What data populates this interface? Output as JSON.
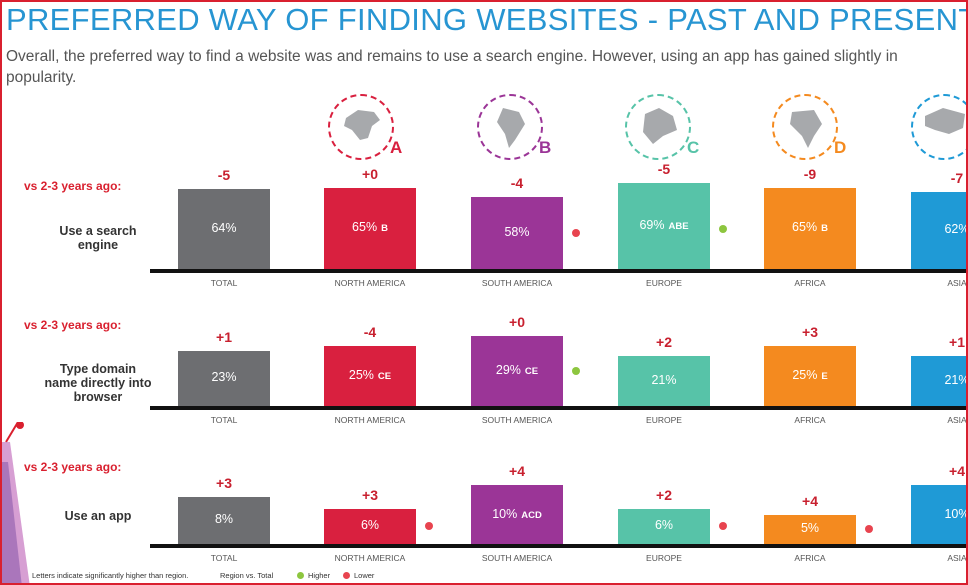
{
  "title": "PREFERRED WAY OF FINDING WEBSITES - PAST AND PRESENT",
  "subtitle": "Overall, the preferred way to find a website was and remains to use a search engine. However, using an app has gained slightly in popularity.",
  "colors": {
    "total": "#6d6e71",
    "north_america": "#d9203f",
    "south_america": "#9b3597",
    "europe": "#57c3a8",
    "africa": "#f48a1f",
    "asia": "#1f9ad6",
    "delta": "#c8202f",
    "higher": "#8dc63f",
    "lower": "#e8444f"
  },
  "regions": [
    {
      "letter": "A",
      "icon": "north-america-map-icon"
    },
    {
      "letter": "B",
      "icon": "south-america-map-icon"
    },
    {
      "letter": "C",
      "icon": "europe-map-icon"
    },
    {
      "letter": "D",
      "icon": "africa-map-icon"
    },
    {
      "letter": "",
      "icon": "asia-map-icon"
    }
  ],
  "vs_label": "vs 2-3 years ago:",
  "categories": [
    "TOTAL",
    "NORTH AMERICA",
    "SOUTH AMERICA",
    "EUROPE",
    "AFRICA",
    "ASIA"
  ],
  "footer": {
    "note": "Letters indicate significantly higher than region.",
    "region_vs_total": "Region vs. Total",
    "higher": "Higher",
    "lower": "Lower"
  },
  "chart_data": {
    "type": "bar",
    "title": "PREFERRED WAY OF FINDING WEBSITES - PAST AND PRESENT",
    "categories": [
      "TOTAL",
      "NORTH AMERICA",
      "SOUTH AMERICA",
      "EUROPE",
      "AFRICA",
      "ASIA"
    ],
    "unit": "%",
    "series": [
      {
        "name": "Use a search engine",
        "values": [
          64,
          65,
          58,
          69,
          65,
          62
        ],
        "value_labels": [
          "64%",
          "65%",
          "58%",
          "69%",
          "65%",
          "62%"
        ],
        "changes": [
          "-5",
          "+0",
          "-4",
          "-5",
          "-9",
          "-7"
        ],
        "significance": [
          "",
          "B",
          "",
          "ABE",
          "B",
          ""
        ],
        "vs_total": [
          "",
          "",
          "lower",
          "higher",
          "",
          ""
        ]
      },
      {
        "name": "Type domain name directly into browser",
        "values": [
          23,
          25,
          29,
          21,
          25,
          21
        ],
        "value_labels": [
          "23%",
          "25%",
          "29%",
          "21%",
          "25%",
          "21%"
        ],
        "changes": [
          "+1",
          "-4",
          "+0",
          "+2",
          "+3",
          "+1"
        ],
        "significance": [
          "",
          "CE",
          "CE",
          "",
          "E",
          ""
        ],
        "vs_total": [
          "",
          "",
          "higher",
          "",
          "",
          ""
        ]
      },
      {
        "name": "Use an app",
        "values": [
          8,
          6,
          10,
          6,
          5,
          10
        ],
        "value_labels": [
          "8%",
          "6%",
          "10%",
          "6%",
          "5%",
          "10%"
        ],
        "changes": [
          "+3",
          "+3",
          "+4",
          "+2",
          "+4",
          "+4"
        ],
        "significance": [
          "",
          "",
          "ACD",
          "",
          "",
          ""
        ],
        "vs_total": [
          "",
          "lower",
          "",
          "lower",
          "lower",
          ""
        ]
      }
    ],
    "legend": {
      "higher": "Higher",
      "lower": "Lower"
    }
  }
}
